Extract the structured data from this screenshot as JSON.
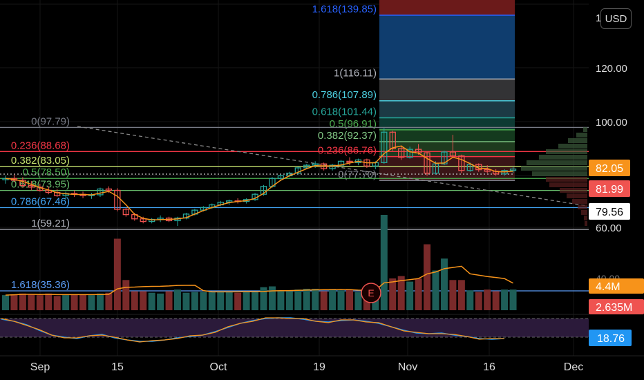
{
  "toolbar": {
    "currency_button": "USD"
  },
  "chart_data": {
    "type": "candlestick",
    "x_axis": {
      "ticks": [
        "Sep",
        "15",
        "Oct",
        "19",
        "Nov",
        "16",
        "Dec"
      ]
    },
    "price_axis": {
      "ticks": [
        "1",
        "120.00",
        "100.00",
        "60.00"
      ],
      "price_badges": [
        {
          "label": "82.05",
          "color": "#f7931a"
        },
        {
          "label": "81.99",
          "color": "#ef5350"
        },
        {
          "label": "79.56",
          "color": "#ffffff"
        }
      ]
    },
    "fib_retracement_1": {
      "levels": [
        {
          "label": "0(97.79)",
          "price": 97.79,
          "color": "#787b86"
        },
        {
          "label": "0.236(88.68)",
          "price": 88.68,
          "color": "#f23645"
        },
        {
          "label": "0.382(83.05)",
          "price": 83.05,
          "color": "#c6e36f"
        },
        {
          "label": "0.5(78.50)",
          "price": 78.5,
          "color": "#4caf50"
        },
        {
          "label": "0.618(73.95)",
          "price": 73.95,
          "color": "#66bb6a"
        },
        {
          "label": "0.786(67.46)",
          "price": 67.46,
          "color": "#42a5f5"
        },
        {
          "label": "1(59.21)",
          "price": 59.21,
          "color": "#b2b5be"
        },
        {
          "label": "1.618(35.36)",
          "price": 35.36,
          "color": "#5b9cf6"
        }
      ]
    },
    "fib_retracement_2": {
      "levels": [
        {
          "label": "1.618(139.85)",
          "price": 139.85,
          "color": "#2962ff"
        },
        {
          "label": "1(116.11)",
          "price": 116.11,
          "color": "#b2b5be"
        },
        {
          "label": "0.786(107.89)",
          "price": 107.89,
          "color": "#4dd0e1"
        },
        {
          "label": "0.618(101.44)",
          "price": 101.44,
          "color": "#26a69a"
        },
        {
          "label": "0.5(96.91)",
          "price": 96.91,
          "color": "#4caf50"
        },
        {
          "label": "0.382(92.37)",
          "price": 92.37,
          "color": "#81c784"
        },
        {
          "label": "0.236(86.76)",
          "price": 86.76,
          "color": "#f23645"
        },
        {
          "label": "0(77.70)",
          "price": 77.7,
          "color": "#787b86"
        }
      ]
    },
    "candles": [
      {
        "o": 78.0,
        "h": 79.5,
        "l": 76.5,
        "c": 78.5
      },
      {
        "o": 78.5,
        "h": 80.0,
        "l": 77.0,
        "c": 77.8
      },
      {
        "o": 77.8,
        "h": 79.0,
        "l": 75.0,
        "c": 75.8
      },
      {
        "o": 75.8,
        "h": 77.5,
        "l": 74.0,
        "c": 75.2
      },
      {
        "o": 75.2,
        "h": 76.5,
        "l": 73.5,
        "c": 74.0
      },
      {
        "o": 74.0,
        "h": 75.5,
        "l": 72.5,
        "c": 73.2
      },
      {
        "o": 73.2,
        "h": 74.5,
        "l": 71.5,
        "c": 72.0
      },
      {
        "o": 72.0,
        "h": 73.5,
        "l": 70.5,
        "c": 72.8
      },
      {
        "o": 72.8,
        "h": 74.0,
        "l": 71.5,
        "c": 72.5
      },
      {
        "o": 72.5,
        "h": 73.5,
        "l": 71.0,
        "c": 72.0
      },
      {
        "o": 72.0,
        "h": 73.0,
        "l": 70.8,
        "c": 72.3
      },
      {
        "o": 72.3,
        "h": 75.0,
        "l": 71.5,
        "c": 74.5
      },
      {
        "o": 74.5,
        "h": 75.5,
        "l": 73.0,
        "c": 74.0
      },
      {
        "o": 74.0,
        "h": 74.8,
        "l": 66.0,
        "c": 66.8
      },
      {
        "o": 66.8,
        "h": 67.5,
        "l": 64.0,
        "c": 64.8
      },
      {
        "o": 64.8,
        "h": 65.5,
        "l": 62.5,
        "c": 63.2
      },
      {
        "o": 63.2,
        "h": 64.0,
        "l": 61.5,
        "c": 62.2
      },
      {
        "o": 62.2,
        "h": 63.5,
        "l": 61.5,
        "c": 63.0
      },
      {
        "o": 63.0,
        "h": 64.5,
        "l": 62.0,
        "c": 63.5
      },
      {
        "o": 63.5,
        "h": 64.0,
        "l": 62.0,
        "c": 62.5
      },
      {
        "o": 62.5,
        "h": 64.0,
        "l": 60.5,
        "c": 63.5
      },
      {
        "o": 63.5,
        "h": 65.5,
        "l": 63.0,
        "c": 65.0
      },
      {
        "o": 65.0,
        "h": 67.0,
        "l": 64.5,
        "c": 66.5
      },
      {
        "o": 66.5,
        "h": 68.0,
        "l": 66.0,
        "c": 67.5
      },
      {
        "o": 67.5,
        "h": 69.0,
        "l": 67.0,
        "c": 68.5
      },
      {
        "o": 68.5,
        "h": 70.0,
        "l": 68.0,
        "c": 69.5
      },
      {
        "o": 69.5,
        "h": 70.5,
        "l": 68.5,
        "c": 70.0
      },
      {
        "o": 70.0,
        "h": 71.0,
        "l": 69.0,
        "c": 69.8
      },
      {
        "o": 69.8,
        "h": 71.0,
        "l": 69.0,
        "c": 70.5
      },
      {
        "o": 70.5,
        "h": 73.0,
        "l": 70.0,
        "c": 72.5
      },
      {
        "o": 72.5,
        "h": 76.0,
        "l": 72.0,
        "c": 75.5
      },
      {
        "o": 75.5,
        "h": 79.0,
        "l": 75.0,
        "c": 78.5
      },
      {
        "o": 78.5,
        "h": 80.0,
        "l": 77.5,
        "c": 79.5
      },
      {
        "o": 79.5,
        "h": 81.0,
        "l": 79.0,
        "c": 80.5
      },
      {
        "o": 80.5,
        "h": 83.0,
        "l": 80.0,
        "c": 82.5
      },
      {
        "o": 82.5,
        "h": 84.0,
        "l": 82.0,
        "c": 83.5
      },
      {
        "o": 83.5,
        "h": 85.0,
        "l": 82.5,
        "c": 84.0
      },
      {
        "o": 84.0,
        "h": 84.5,
        "l": 81.5,
        "c": 82.2
      },
      {
        "o": 82.2,
        "h": 84.0,
        "l": 81.5,
        "c": 83.5
      },
      {
        "o": 83.5,
        "h": 85.5,
        "l": 83.0,
        "c": 85.0
      },
      {
        "o": 85.0,
        "h": 86.5,
        "l": 83.5,
        "c": 84.5
      },
      {
        "o": 84.5,
        "h": 86.0,
        "l": 83.5,
        "c": 85.5
      },
      {
        "o": 85.5,
        "h": 86.0,
        "l": 82.5,
        "c": 83.2
      },
      {
        "o": 83.2,
        "h": 85.0,
        "l": 82.0,
        "c": 84.5
      },
      {
        "o": 84.5,
        "h": 97.5,
        "l": 84.0,
        "c": 96.0
      },
      {
        "o": 96.0,
        "h": 96.5,
        "l": 89.0,
        "c": 89.8
      },
      {
        "o": 89.8,
        "h": 91.0,
        "l": 85.5,
        "c": 86.5
      },
      {
        "o": 86.5,
        "h": 90.5,
        "l": 86.0,
        "c": 89.5
      },
      {
        "o": 89.5,
        "h": 91.5,
        "l": 87.5,
        "c": 88.2
      },
      {
        "o": 88.2,
        "h": 88.5,
        "l": 79.5,
        "c": 80.5
      },
      {
        "o": 80.5,
        "h": 85.0,
        "l": 80.0,
        "c": 84.0
      },
      {
        "o": 84.0,
        "h": 89.0,
        "l": 83.5,
        "c": 88.5
      },
      {
        "o": 88.5,
        "h": 95.0,
        "l": 86.5,
        "c": 87.0
      },
      {
        "o": 87.0,
        "h": 87.5,
        "l": 80.5,
        "c": 81.5
      },
      {
        "o": 81.5,
        "h": 84.5,
        "l": 81.0,
        "c": 83.8
      },
      {
        "o": 83.8,
        "h": 84.2,
        "l": 81.0,
        "c": 81.8
      },
      {
        "o": 81.8,
        "h": 83.5,
        "l": 80.5,
        "c": 81.2
      },
      {
        "o": 81.2,
        "h": 82.0,
        "l": 79.5,
        "c": 80.2
      },
      {
        "o": 80.2,
        "h": 82.0,
        "l": 79.5,
        "c": 81.5
      },
      {
        "o": 81.5,
        "h": 83.0,
        "l": 80.5,
        "c": 82.05
      }
    ],
    "volume": {
      "badges": [
        {
          "label": "4.4M",
          "color": "#f7931a"
        },
        {
          "label": "2.635M",
          "color": "#ef5350"
        }
      ],
      "values": [
        1.9,
        2.0,
        2.1,
        2.0,
        1.9,
        2.1,
        1.8,
        1.9,
        2.0,
        2.0,
        1.9,
        2.1,
        2.2,
        9.0,
        3.8,
        2.4,
        2.4,
        2.2,
        2.1,
        2.4,
        2.6,
        2.2,
        2.3,
        2.3,
        2.3,
        2.4,
        2.3,
        2.2,
        2.4,
        2.3,
        2.9,
        3.0,
        2.5,
        2.4,
        2.6,
        2.7,
        2.7,
        2.4,
        2.6,
        2.5,
        2.6,
        2.3,
        2.3,
        2.3,
        12.0,
        4.0,
        4.3,
        3.6,
        4.0,
        8.3,
        5.0,
        6.5,
        3.8,
        3.8,
        2.5,
        2.3,
        2.6,
        2.4,
        2.6,
        2.6
      ]
    },
    "rsi": {
      "value_label": "18.76"
    },
    "event_marker": {
      "label": "E"
    }
  }
}
